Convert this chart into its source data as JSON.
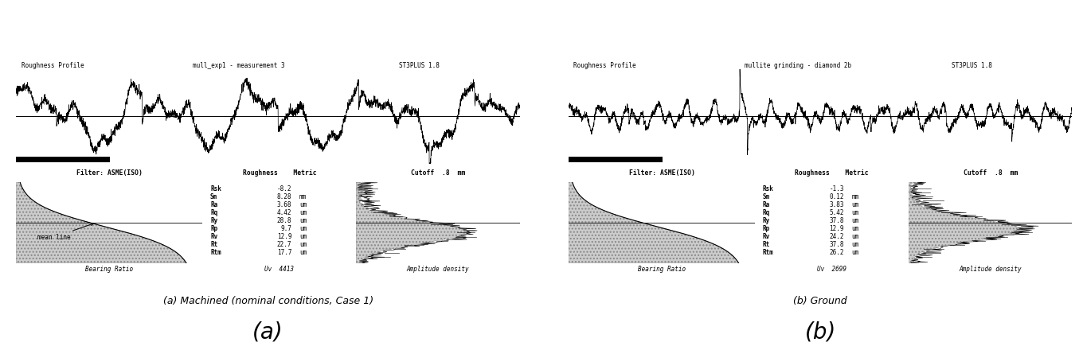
{
  "panel_a": {
    "title_left": "Roughness Profile",
    "title_mid": "mull_exp1 - measurement 3",
    "title_right": "ST3PLUS 1.8",
    "filter_label": "Filter: ASME(ISO)",
    "roughness_label": "Roughness    Metric",
    "cutoff_label": "Cutoff  .8  mm",
    "bearing_label": "Bearing Ratio",
    "uv_label": "Uv  4413",
    "amplitude_label": "Amplitude density",
    "caption": "(a) Machined (nominal conditions, Case 1)",
    "letter": "(a)",
    "mean_line_label": "mean line",
    "has_mean_line": true,
    "params": [
      [
        "Rsk",
        "-8.2",
        ""
      ],
      [
        "Sm",
        "8.28",
        "mm"
      ],
      [
        "Ra",
        "3.68",
        "um"
      ],
      [
        "Rq",
        "4.42",
        "um"
      ],
      [
        "Ry",
        "28.8",
        "um"
      ],
      [
        "Rp",
        "9.7",
        "um"
      ],
      [
        "Rv",
        "12.9",
        "um"
      ],
      [
        "Rt",
        "22.7",
        "um"
      ],
      [
        "Rtm",
        "17.7",
        "um"
      ]
    ]
  },
  "panel_b": {
    "title_left": "Roughness Profile",
    "title_mid": "mullite grinding - diamond 2b",
    "title_right": "ST3PLUS 1.8",
    "filter_label": "Filter: ASME(ISO)",
    "roughness_label": "Roughness    Metric",
    "cutoff_label": "Cutoff  .8  mm",
    "bearing_label": "Bearing Ratio",
    "uv_label": "Uv  2699",
    "amplitude_label": "Amplitude density",
    "caption": "(b) Ground",
    "letter": "(b)",
    "has_mean_line": false,
    "params": [
      [
        "Rsk",
        "-1.3",
        ""
      ],
      [
        "Sm",
        "0.12",
        "mm"
      ],
      [
        "Ra",
        "3.83",
        "um"
      ],
      [
        "Rq",
        "5.42",
        "um"
      ],
      [
        "Ry",
        "37.8",
        "um"
      ],
      [
        "Rp",
        "12.9",
        "um"
      ],
      [
        "Rv",
        "24.2",
        "um"
      ],
      [
        "Rt",
        "37.8",
        "um"
      ],
      [
        "Rtm",
        "26.2",
        "um"
      ]
    ]
  }
}
